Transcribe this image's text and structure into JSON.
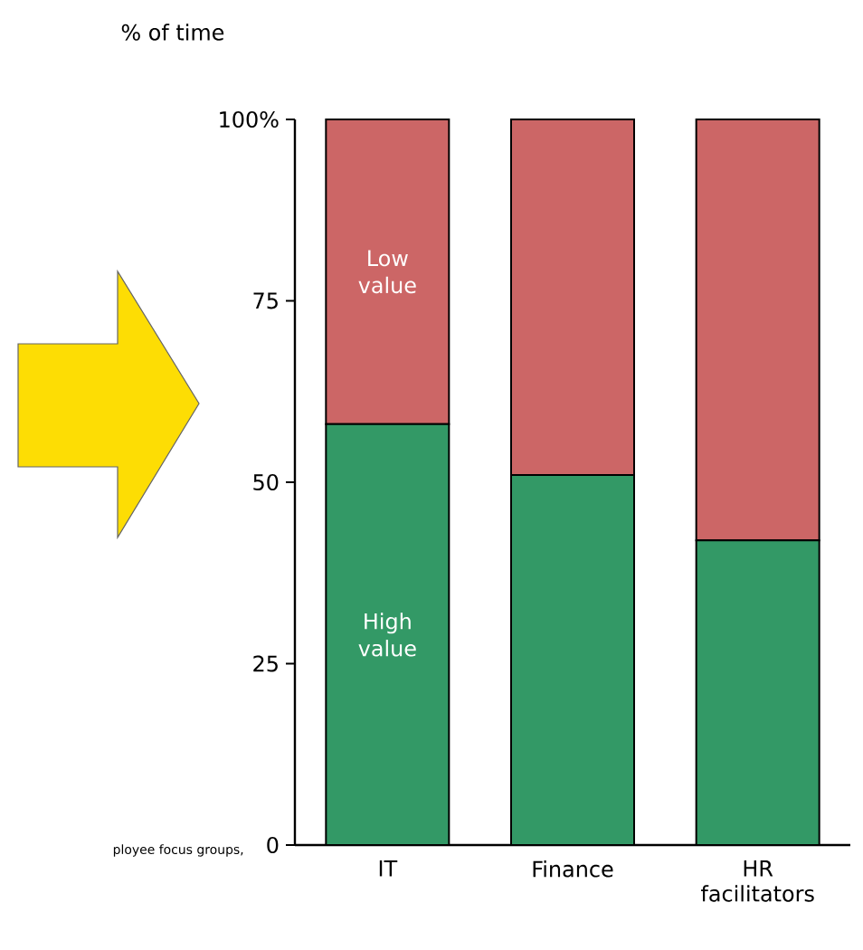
{
  "chart_data": {
    "type": "bar",
    "stacked": true,
    "ylabel": "% of time",
    "categories": [
      "IT",
      "Finance",
      "HR facilitators"
    ],
    "series": [
      {
        "name": "High value",
        "color": "#339966",
        "values": [
          58,
          51,
          42
        ]
      },
      {
        "name": "Low value",
        "color": "#cc6666",
        "values": [
          42,
          49,
          58
        ]
      }
    ],
    "ylim": [
      0,
      100
    ],
    "yticks": [
      0,
      25,
      50,
      75,
      {
        "value": 100,
        "label": "100%"
      }
    ],
    "annotations": [
      "ployee focus groups,"
    ]
  }
}
